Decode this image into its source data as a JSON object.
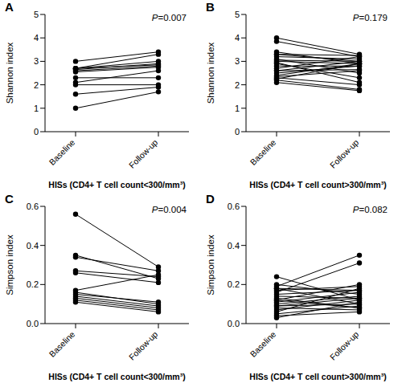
{
  "chart_data": [
    {
      "type": "line",
      "title": "A",
      "annotation": "P=0.007",
      "y_label": "Shannon index",
      "x_label": "HISs (CD4+ T cell count<300/mm³)",
      "color": "#000000",
      "marker": "circle",
      "categories": [
        "Baseline",
        "Follow-up"
      ],
      "ylim": [
        0,
        5
      ],
      "yticks": [
        0,
        1,
        2,
        3,
        4,
        5
      ],
      "series": [
        {
          "values": [
            3.0,
            3.4
          ]
        },
        {
          "values": [
            2.7,
            3.3
          ]
        },
        {
          "values": [
            2.7,
            3.0
          ]
        },
        {
          "values": [
            2.65,
            2.9
          ]
        },
        {
          "values": [
            2.6,
            2.8
          ]
        },
        {
          "values": [
            2.55,
            2.75
          ]
        },
        {
          "values": [
            2.3,
            2.3
          ]
        },
        {
          "values": [
            2.1,
            2.6
          ]
        },
        {
          "values": [
            2.0,
            2.0
          ]
        },
        {
          "values": [
            1.6,
            1.9
          ]
        },
        {
          "values": [
            1.0,
            1.7
          ]
        },
        {
          "values": [
            2.7,
            2.85
          ]
        }
      ]
    },
    {
      "type": "line",
      "title": "B",
      "annotation": "P=0.179",
      "y_label": "Shannon index",
      "x_label": "HISs (CD4+ T cell count>300/mm³)",
      "color": "#000000",
      "marker": "circle",
      "categories": [
        "Baseline",
        "Follow-up"
      ],
      "ylim": [
        0,
        5
      ],
      "yticks": [
        0,
        1,
        2,
        3,
        4,
        5
      ],
      "series": [
        {
          "values": [
            4.0,
            3.3
          ]
        },
        {
          "values": [
            3.85,
            3.2
          ]
        },
        {
          "values": [
            3.4,
            2.9
          ]
        },
        {
          "values": [
            3.3,
            3.0
          ]
        },
        {
          "values": [
            3.2,
            3.1
          ]
        },
        {
          "values": [
            3.1,
            2.5
          ]
        },
        {
          "values": [
            3.05,
            3.0
          ]
        },
        {
          "values": [
            3.0,
            2.9
          ]
        },
        {
          "values": [
            2.95,
            2.1
          ]
        },
        {
          "values": [
            2.9,
            2.3
          ]
        },
        {
          "values": [
            2.8,
            2.8
          ]
        },
        {
          "values": [
            2.7,
            3.2
          ]
        },
        {
          "values": [
            2.6,
            3.0
          ]
        },
        {
          "values": [
            2.5,
            2.8
          ]
        },
        {
          "values": [
            2.4,
            2.9
          ]
        },
        {
          "values": [
            2.35,
            2.6
          ]
        },
        {
          "values": [
            2.3,
            2.0
          ]
        },
        {
          "values": [
            2.2,
            1.8
          ]
        },
        {
          "values": [
            2.1,
            1.75
          ]
        },
        {
          "values": [
            3.3,
            3.25
          ]
        },
        {
          "values": [
            2.6,
            2.65
          ]
        },
        {
          "values": [
            2.25,
            2.9
          ]
        }
      ]
    },
    {
      "type": "line",
      "title": "C",
      "annotation": "P=0.004",
      "y_label": "Simpson index",
      "x_label": "HISs (CD4+ T cell count<300/mm³)",
      "color": "#000000",
      "marker": "circle",
      "categories": [
        "Baseline",
        "Follow-up"
      ],
      "ylim": [
        0,
        0.6
      ],
      "yticks": [
        {
          "value": 0,
          "label": "0.0"
        },
        0.2,
        0.4,
        0.6
      ],
      "series": [
        {
          "values": [
            0.56,
            0.29
          ]
        },
        {
          "values": [
            0.35,
            0.23
          ]
        },
        {
          "values": [
            0.34,
            0.27
          ]
        },
        {
          "values": [
            0.27,
            0.24
          ]
        },
        {
          "values": [
            0.26,
            0.21
          ]
        },
        {
          "values": [
            0.17,
            0.25
          ]
        },
        {
          "values": [
            0.16,
            0.1
          ]
        },
        {
          "values": [
            0.15,
            0.11
          ]
        },
        {
          "values": [
            0.14,
            0.09
          ]
        },
        {
          "values": [
            0.13,
            0.08
          ]
        },
        {
          "values": [
            0.12,
            0.07
          ]
        },
        {
          "values": [
            0.11,
            0.06
          ]
        }
      ]
    },
    {
      "type": "line",
      "title": "D",
      "annotation": "P=0.082",
      "y_label": "Simpson index",
      "x_label": "HISs (CD4+ T cell count>300/mm³)",
      "color": "#000000",
      "marker": "circle",
      "categories": [
        "Baseline",
        "Follow-up"
      ],
      "ylim": [
        0,
        0.6
      ],
      "yticks": [
        {
          "value": 0,
          "label": "0.0"
        },
        0.2,
        0.4,
        0.6
      ],
      "series": [
        {
          "values": [
            0.24,
            0.12
          ]
        },
        {
          "values": [
            0.2,
            0.15
          ]
        },
        {
          "values": [
            0.19,
            0.35
          ]
        },
        {
          "values": [
            0.18,
            0.1
          ]
        },
        {
          "values": [
            0.17,
            0.19
          ]
        },
        {
          "values": [
            0.16,
            0.31
          ]
        },
        {
          "values": [
            0.15,
            0.17
          ]
        },
        {
          "values": [
            0.14,
            0.13
          ]
        },
        {
          "values": [
            0.13,
            0.08
          ]
        },
        {
          "values": [
            0.12,
            0.2
          ]
        },
        {
          "values": [
            0.11,
            0.16
          ]
        },
        {
          "values": [
            0.1,
            0.14
          ]
        },
        {
          "values": [
            0.09,
            0.1
          ]
        },
        {
          "values": [
            0.08,
            0.07
          ]
        },
        {
          "values": [
            0.07,
            0.12
          ]
        },
        {
          "values": [
            0.06,
            0.18
          ]
        },
        {
          "values": [
            0.05,
            0.09
          ]
        },
        {
          "values": [
            0.04,
            0.06
          ]
        },
        {
          "values": [
            0.03,
            0.11
          ]
        },
        {
          "values": [
            0.18,
            0.17
          ]
        },
        {
          "values": [
            0.12,
            0.08
          ]
        },
        {
          "values": [
            0.09,
            0.13
          ]
        }
      ]
    }
  ]
}
